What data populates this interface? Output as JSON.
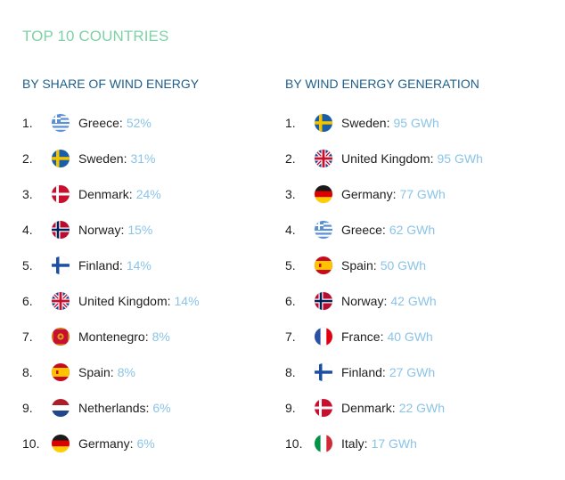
{
  "title": "TOP 10 COUNTRIES",
  "share": {
    "heading": "BY SHARE OF WIND ENERGY",
    "items": [
      {
        "rank": "1.",
        "country": "Greece:",
        "value": "52%",
        "flag_icon": "greece-flag-icon"
      },
      {
        "rank": "2.",
        "country": "Sweden:",
        "value": "31%",
        "flag_icon": "sweden-flag-icon"
      },
      {
        "rank": "3.",
        "country": "Denmark:",
        "value": "24%",
        "flag_icon": "denmark-flag-icon"
      },
      {
        "rank": "4.",
        "country": "Norway:",
        "value": "15%",
        "flag_icon": "norway-flag-icon"
      },
      {
        "rank": "5.",
        "country": "Finland:",
        "value": "14%",
        "flag_icon": "finland-flag-icon"
      },
      {
        "rank": "6.",
        "country": "United Kingdom:",
        "value": "14%",
        "flag_icon": "uk-flag-icon"
      },
      {
        "rank": "7.",
        "country": "Montenegro:",
        "value": "8%",
        "flag_icon": "montenegro-flag-icon"
      },
      {
        "rank": "8.",
        "country": "Spain:",
        "value": "8%",
        "flag_icon": "spain-flag-icon"
      },
      {
        "rank": "9.",
        "country": "Netherlands:",
        "value": "6%",
        "flag_icon": "netherlands-flag-icon"
      },
      {
        "rank": "10.",
        "country": "Germany:",
        "value": "6%",
        "flag_icon": "germany-flag-icon"
      }
    ]
  },
  "generation": {
    "heading": "BY WIND ENERGY GENERATION",
    "items": [
      {
        "rank": "1.",
        "country": "Sweden:",
        "value": "95 GWh",
        "flag_icon": "sweden-flag-icon"
      },
      {
        "rank": "2.",
        "country": "United Kingdom:",
        "value": "95 GWh",
        "flag_icon": "uk-flag-icon"
      },
      {
        "rank": "3.",
        "country": "Germany:",
        "value": "77 GWh",
        "flag_icon": "germany-flag-icon"
      },
      {
        "rank": "4.",
        "country": "Greece:",
        "value": "62 GWh",
        "flag_icon": "greece-flag-icon"
      },
      {
        "rank": "5.",
        "country": "Spain:",
        "value": "50 GWh",
        "flag_icon": "spain-flag-icon"
      },
      {
        "rank": "6.",
        "country": "Norway:",
        "value": "42 GWh",
        "flag_icon": "norway-flag-icon"
      },
      {
        "rank": "7.",
        "country": "France:",
        "value": "40 GWh",
        "flag_icon": "france-flag-icon"
      },
      {
        "rank": "8.",
        "country": "Finland:",
        "value": "27 GWh",
        "flag_icon": "finland-flag-icon"
      },
      {
        "rank": "9.",
        "country": "Denmark:",
        "value": "22 GWh",
        "flag_icon": "denmark-flag-icon"
      },
      {
        "rank": "10.",
        "country": "Italy:",
        "value": "17 GWh",
        "flag_icon": "italy-flag-icon"
      }
    ]
  },
  "colors": {
    "title": "#7fd1a6",
    "heading": "#1f5f8b",
    "value": "#8ac4e8",
    "text": "#1e1e1e"
  }
}
